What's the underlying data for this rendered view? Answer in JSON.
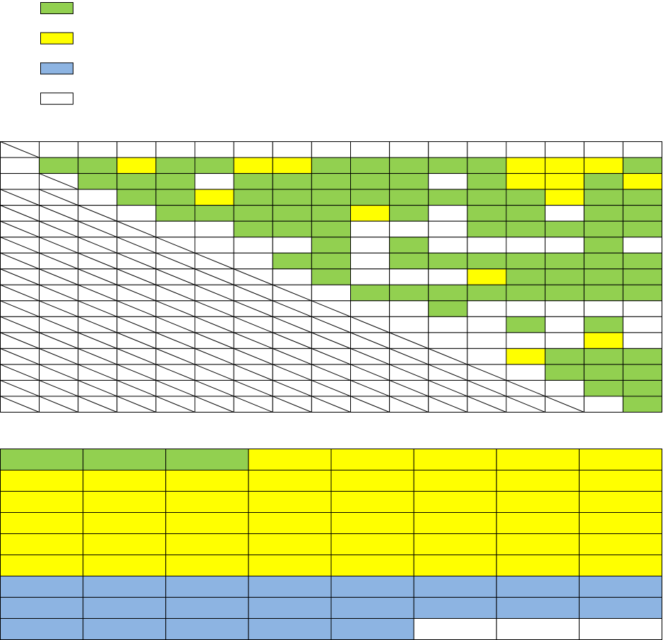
{
  "palette": {
    "g": "#92d050",
    "y": "#ffff00",
    "b": "#8db4e2",
    "w": "#ffffff"
  },
  "legend": [
    "g",
    "y",
    "b",
    "w"
  ],
  "matrix": [
    "xwwwwwwwwwwwwwwww",
    "wggyggyygggggyyyg",
    "wxgggwgggggwgyygy",
    "xxwggyggggggggygg",
    "xxxwgggggygwggwgg",
    "xxxxwwgggwwwggggg",
    "xxxxxwwwgwgwwwwgw",
    "xxxxxxwggwggggggg",
    "xxxxxxxwgwwwygggg",
    "xxxxxxxxwgggggggg",
    "xxxxxxxxxwwgwwwww",
    "xxxxxxxxxxwwwgwgw",
    "xxxxxxxxxxxwwwwyw",
    "xxxxxxxxxxxxwyggg",
    "xxxxxxxxxxxxxwggg",
    "xxxxxxxxxxxxxxwgg",
    "xxxxxxxxxxxxxxxwg"
  ],
  "table": [
    "gggyyyyy",
    "yyyyyyyy",
    "yyyyyyyy",
    "yyyyyyyy",
    "yyyyyyyy",
    "yyyyyyyy",
    "bbbbbbbb",
    "bbbbbbbb",
    "bbbbbwww"
  ]
}
